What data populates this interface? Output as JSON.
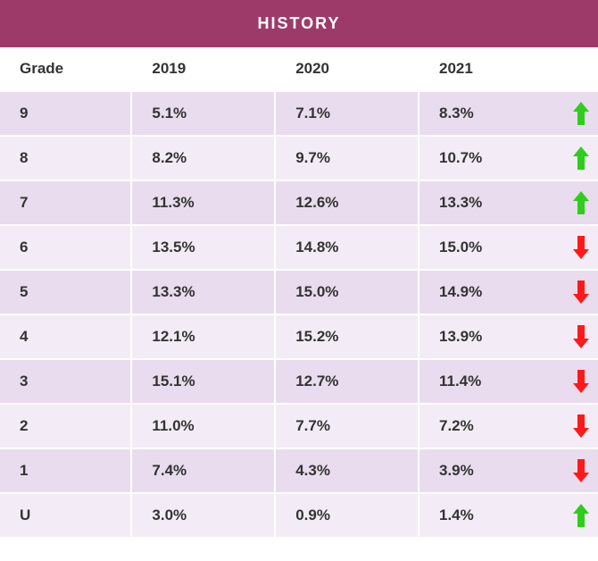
{
  "title": "HISTORY",
  "title_bg": "#9e3a6a",
  "title_color": "#ffffff",
  "columns": [
    "Grade",
    "2019",
    "2020",
    "2021"
  ],
  "row_colors": {
    "even": "#e9dcee",
    "odd": "#f3ecf6"
  },
  "arrow_colors": {
    "up": "#2fce1b",
    "down": "#ff1a1a"
  },
  "rows": [
    {
      "grade": "9",
      "y2019": "5.1%",
      "y2020": "7.1%",
      "y2021": "8.3%",
      "trend": "up"
    },
    {
      "grade": "8",
      "y2019": "8.2%",
      "y2020": "9.7%",
      "y2021": "10.7%",
      "trend": "up"
    },
    {
      "grade": "7",
      "y2019": "11.3%",
      "y2020": "12.6%",
      "y2021": "13.3%",
      "trend": "up"
    },
    {
      "grade": "6",
      "y2019": "13.5%",
      "y2020": "14.8%",
      "y2021": "15.0%",
      "trend": "down"
    },
    {
      "grade": "5",
      "y2019": "13.3%",
      "y2020": "15.0%",
      "y2021": "14.9%",
      "trend": "down"
    },
    {
      "grade": "4",
      "y2019": "12.1%",
      "y2020": "15.2%",
      "y2021": "13.9%",
      "trend": "down"
    },
    {
      "grade": "3",
      "y2019": "15.1%",
      "y2020": "12.7%",
      "y2021": "11.4%",
      "trend": "down"
    },
    {
      "grade": "2",
      "y2019": "11.0%",
      "y2020": "7.7%",
      "y2021": "7.2%",
      "trend": "down"
    },
    {
      "grade": "1",
      "y2019": "7.4%",
      "y2020": "4.3%",
      "y2021": "3.9%",
      "trend": "down"
    },
    {
      "grade": "U",
      "y2019": "3.0%",
      "y2020": "0.9%",
      "y2021": "1.4%",
      "trend": "up"
    }
  ]
}
